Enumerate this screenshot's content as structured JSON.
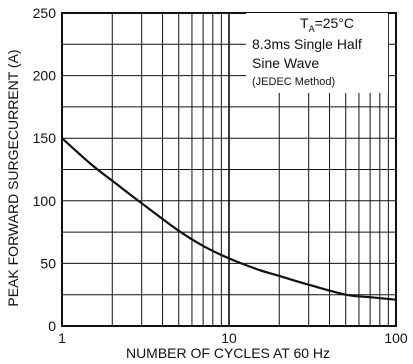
{
  "chart_data": {
    "type": "line",
    "xscale": "log",
    "xlim": [
      1,
      100
    ],
    "ylim": [
      0,
      250
    ],
    "grid": true,
    "xlabel": "NUMBER OF CYCLES AT 60 Hz",
    "ylabel": "PEAK FORWARD SURGECURRENT (A)",
    "x_ticks": [
      "1",
      "10",
      "100"
    ],
    "y_ticks": [
      "0",
      "50",
      "100",
      "150",
      "200",
      "250"
    ],
    "x_tick_values": [
      1,
      10,
      100
    ],
    "y_tick_values": [
      0,
      50,
      100,
      150,
      200,
      250
    ],
    "annotation": {
      "temp_prefix": "T",
      "temp_sub": "A",
      "temp_value": "=25°C",
      "line2": "8.3ms Single Half",
      "line3": "Sine Wave",
      "line4": "(JEDEC Method)"
    },
    "series": [
      {
        "x": [
          1,
          1.5,
          2,
          3,
          5,
          7,
          10,
          15,
          20,
          30,
          50,
          70,
          100
        ],
        "y": [
          150,
          129,
          116,
          98,
          76,
          64,
          54,
          45,
          40,
          33,
          25,
          23,
          21
        ]
      }
    ]
  }
}
